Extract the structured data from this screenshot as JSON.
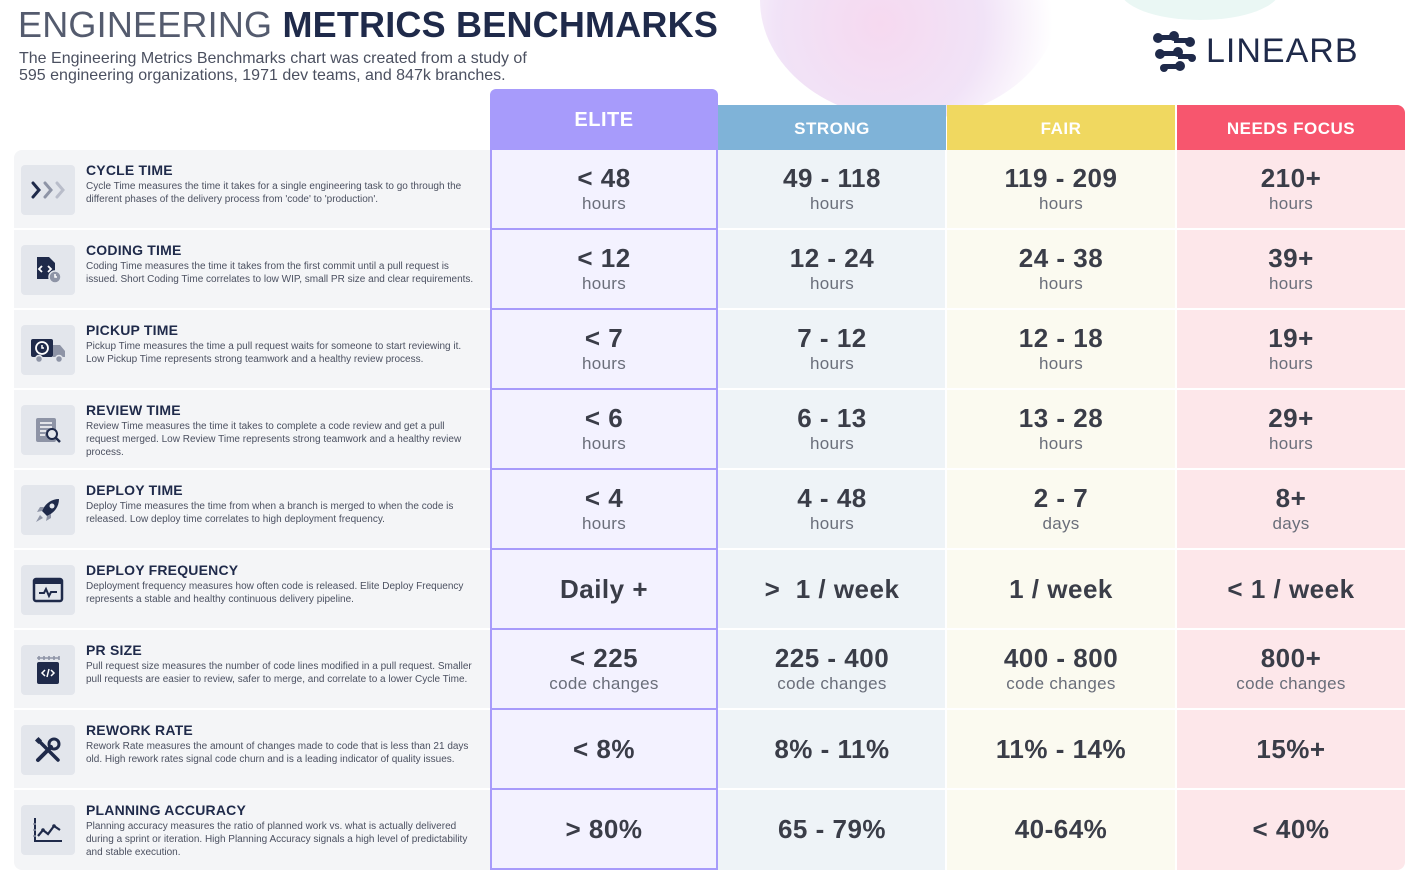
{
  "title": {
    "light": "ENGINEERING ",
    "bold": "METRICS BENCHMARKS"
  },
  "subtitle": "The Engineering Metrics Benchmarks chart was created from a study of 595 engineering organizations, 1971 dev teams, and 847k branches.",
  "logo": {
    "text": "LINEARB",
    "icon": "linearb-logo-icon"
  },
  "colors": {
    "elite": "#a79bfb",
    "strong": "#7fb3d8",
    "fair": "#f0d860",
    "needs_focus": "#f7566e",
    "navy": "#1f2a4a"
  },
  "tiers": [
    "ELITE",
    "STRONG",
    "FAIR",
    "NEEDS FOCUS"
  ],
  "metrics": [
    {
      "name": "CYCLE TIME",
      "icon": "chevrons-right-icon",
      "desc": "Cycle Time measures the time it takes for a single engineering task to go through the different phases of the delivery process from 'code' to 'production'.",
      "values": [
        {
          "v": "< 48",
          "u": "hours"
        },
        {
          "v": "49 - 118",
          "u": "hours"
        },
        {
          "v": "119 - 209",
          "u": "hours"
        },
        {
          "v": "210+",
          "u": "hours"
        }
      ]
    },
    {
      "name": "CODING TIME",
      "icon": "code-file-clock-icon",
      "desc": "Coding Time measures the time it takes from the first commit until a pull request is issued. Short Coding Time correlates to low WIP, small PR size and clear requirements.",
      "values": [
        {
          "v": "< 12",
          "u": "hours"
        },
        {
          "v": "12 - 24",
          "u": "hours"
        },
        {
          "v": "24 - 38",
          "u": "hours"
        },
        {
          "v": "39+",
          "u": "hours"
        }
      ]
    },
    {
      "name": "PICKUP TIME",
      "icon": "delivery-truck-clock-icon",
      "desc": "Pickup Time measures the time a pull request waits for someone to start reviewing it. Low Pickup Time represents strong teamwork and a healthy review process.",
      "values": [
        {
          "v": "< 7",
          "u": "hours"
        },
        {
          "v": "7 - 12",
          "u": "hours"
        },
        {
          "v": "12 - 18",
          "u": "hours"
        },
        {
          "v": "19+",
          "u": "hours"
        }
      ]
    },
    {
      "name": "REVIEW TIME",
      "icon": "document-magnifier-icon",
      "desc": "Review Time measures the time it takes to complete a code review and get a pull request merged. Low Review Time represents strong teamwork and a healthy review process.",
      "values": [
        {
          "v": "< 6",
          "u": "hours"
        },
        {
          "v": "6 - 13",
          "u": "hours"
        },
        {
          "v": "13 - 28",
          "u": "hours"
        },
        {
          "v": "29+",
          "u": "hours"
        }
      ]
    },
    {
      "name": "DEPLOY TIME",
      "icon": "rocket-icon",
      "desc": "Deploy Time measures the time from when a branch is merged to when the code is released. Low deploy time correlates to high deployment frequency.",
      "values": [
        {
          "v": "< 4",
          "u": "hours"
        },
        {
          "v": "4 - 48",
          "u": "hours"
        },
        {
          "v": "2 - 7",
          "u": "days"
        },
        {
          "v": "8+",
          "u": "days"
        }
      ]
    },
    {
      "name": "DEPLOY FREQUENCY",
      "icon": "browser-pulse-icon",
      "desc": "Deployment frequency measures how often code is released. Elite Deploy Frequency represents a stable and healthy continuous delivery pipeline.",
      "values": [
        {
          "v": "Daily +",
          "u": ""
        },
        {
          "v": ">  1 / week",
          "u": ""
        },
        {
          "v": "1 / week",
          "u": ""
        },
        {
          "v": "< 1 / week",
          "u": ""
        }
      ]
    },
    {
      "name": "PR SIZE",
      "icon": "ruler-code-icon",
      "desc": "Pull request size measures the number of code lines modified in a pull request. Smaller pull requests are easier to review, safer to merge, and correlate to a lower Cycle Time.",
      "values": [
        {
          "v": "< 225",
          "u": "code changes"
        },
        {
          "v": "225 - 400",
          "u": "code changes"
        },
        {
          "v": "400 - 800",
          "u": "code changes"
        },
        {
          "v": "800+",
          "u": "code changes"
        }
      ]
    },
    {
      "name": "REWORK RATE",
      "icon": "wrench-screwdriver-icon",
      "desc": "Rework Rate measures the amount of changes made to code that is less than 21 days old. High rework rates signal code churn and is a leading indicator of quality issues.",
      "values": [
        {
          "v": "< 8%",
          "u": ""
        },
        {
          "v": "8% - 11%",
          "u": ""
        },
        {
          "v": "11% - 14%",
          "u": ""
        },
        {
          "v": "15%+",
          "u": ""
        }
      ]
    },
    {
      "name": "PLANNING ACCURACY",
      "icon": "trend-chart-icon",
      "desc": "Planning accuracy measures the ratio of planned work vs. what is actually delivered during a sprint or iteration. High Planning Accuracy signals a high level of predictability and stable execution.",
      "values": [
        {
          "v": "> 80%",
          "u": ""
        },
        {
          "v": "65 - 79%",
          "u": ""
        },
        {
          "v": "40-64%",
          "u": ""
        },
        {
          "v": "< 40%",
          "u": ""
        }
      ]
    }
  ]
}
